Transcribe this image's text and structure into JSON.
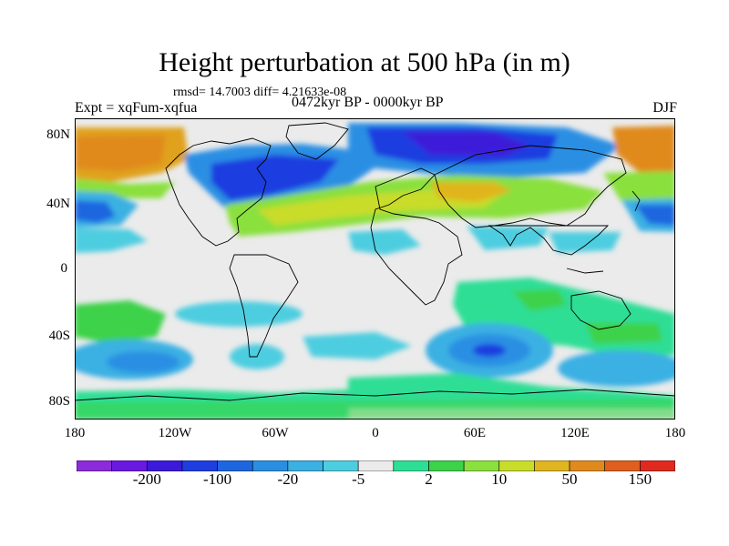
{
  "title": "Height perturbation at 500 hPa (in m)",
  "rmsd_text": "rmsd= 14.7003 diff= 4.21633e-08",
  "experiment": "Expt = xqFum-xqfua",
  "period": "0472kyr BP - 0000kyr BP",
  "season": "DJF",
  "lat_labels": [
    "80N",
    "40N",
    "0",
    "40S",
    "80S"
  ],
  "lon_labels": [
    "180",
    "120W",
    "60W",
    "0",
    "60E",
    "120E",
    "180"
  ],
  "colorbar": {
    "colors": [
      "#8c2bd9",
      "#6a19e0",
      "#3c1ad9",
      "#1f3ee0",
      "#1e66e0",
      "#2a8fe3",
      "#3bb0e3",
      "#4dcde0",
      "#ebebeb",
      "#2dde95",
      "#3cd24a",
      "#8ae03d",
      "#c9dc2a",
      "#e0b51f",
      "#e08a1e",
      "#e05f1e",
      "#e02a1e"
    ],
    "labels": [
      "-200",
      "-100",
      "-20",
      "-5",
      "2",
      "10",
      "50",
      "150"
    ]
  }
}
